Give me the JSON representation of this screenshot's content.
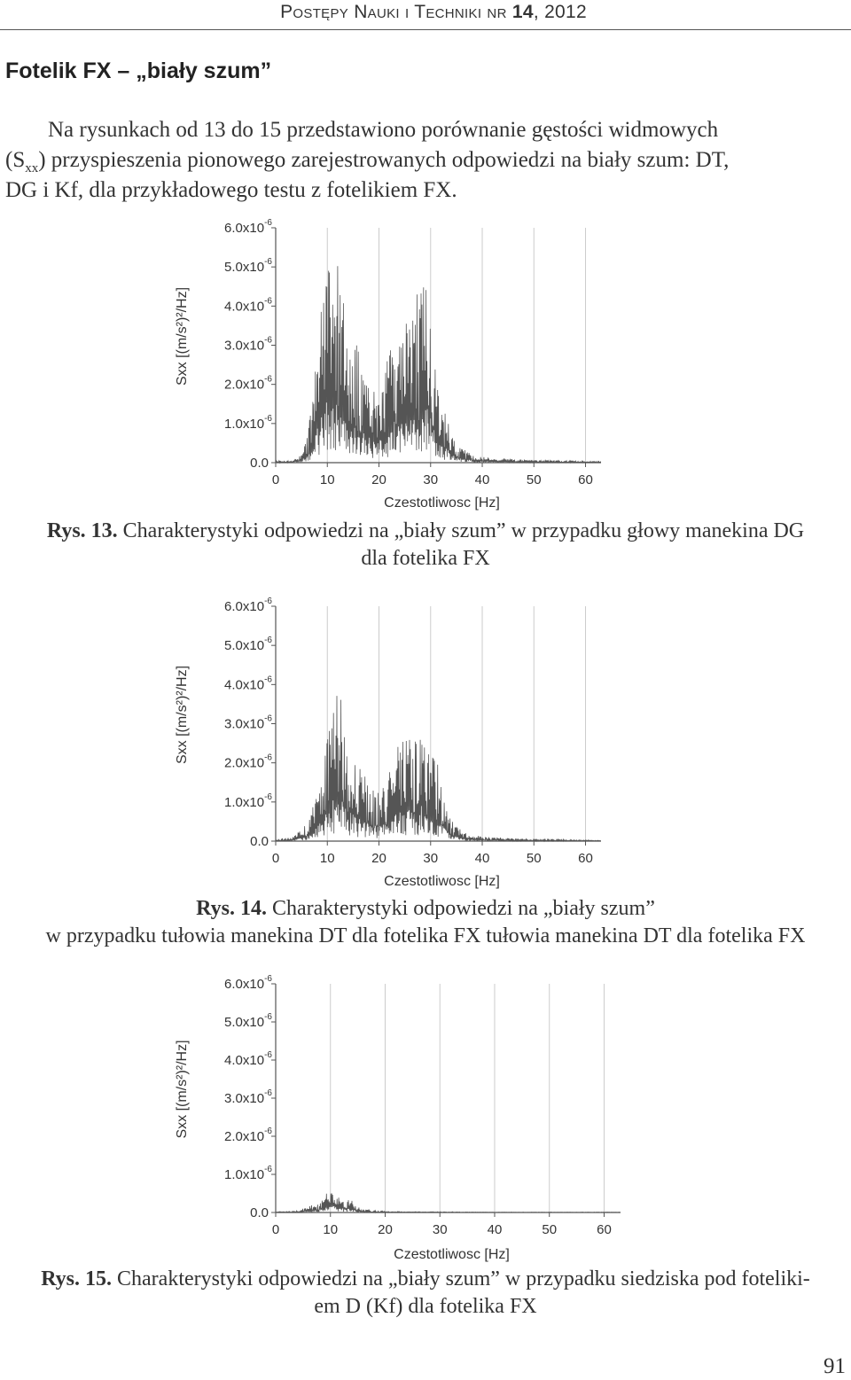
{
  "header": {
    "journal": "Postępy Nauki i Techniki nr",
    "issue": "14",
    "year": ", 2012"
  },
  "section_title": "Fotelik FX – „biały szum”",
  "intro": {
    "line1": "Na rysunkach od 13 do 15 przedstawiono porównanie gęstości widmowych",
    "line2_pre": "(S",
    "line2_sub": "xx",
    "line2_post": ") przyspieszenia pionowego zarejestrowanych odpowiedzi na biały szum: DT,",
    "line3": "DG i Kf, dla przykładowego testu z fotelikiem FX."
  },
  "axis_common": {
    "ylabel": "Sxx [(m/s²)²/Hz]",
    "xlabel": "Czestotliwosc [Hz]",
    "y_ticks": [
      "0.0",
      "1.0x10",
      "2.0x10",
      "3.0x10",
      "4.0x10",
      "5.0x10",
      "6.0x10"
    ],
    "y_tick_exp": "-6",
    "x_ticks": [
      "0",
      "10",
      "20",
      "30",
      "40",
      "50",
      "60"
    ]
  },
  "chart_data": [
    {
      "type": "area",
      "xlabel": "Czestotliwosc [Hz]",
      "ylabel": "Sxx [(m/s²)²/Hz]",
      "xlim": [
        0,
        63
      ],
      "ylim": [
        0,
        6e-06
      ],
      "x": [
        0,
        3,
        5,
        6,
        7,
        8,
        9,
        10,
        11,
        12,
        13,
        14,
        15,
        16,
        17,
        18,
        19,
        20,
        21,
        22,
        23,
        24,
        25,
        26,
        27,
        28,
        29,
        30,
        31,
        32,
        33,
        34,
        35,
        36,
        37,
        38,
        39,
        40,
        42,
        45,
        48,
        52,
        56,
        60,
        63
      ],
      "values": [
        5e-08,
        5e-08,
        2e-07,
        6e-07,
        1.5e-06,
        3e-06,
        4.5e-06,
        5.8e-06,
        4.8e-06,
        5.8e-06,
        4.6e-06,
        4.3e-06,
        3.3e-06,
        3e-06,
        2.6e-06,
        2.3e-06,
        2e-06,
        1.8e-06,
        2.4e-06,
        3e-06,
        3.6e-06,
        3.3e-06,
        3.7e-06,
        4.1e-06,
        4.4e-06,
        4.2e-06,
        5.2e-06,
        3.8e-06,
        2.2e-06,
        1.8e-06,
        1.2e-06,
        8e-07,
        5e-07,
        3.5e-07,
        3e-07,
        2e-07,
        1.5e-07,
        1.5e-07,
        1.2e-07,
        1e-07,
        8e-08,
        6e-08,
        5e-08,
        4e-08,
        3e-08
      ]
    },
    {
      "type": "area",
      "xlabel": "Czestotliwosc [Hz]",
      "ylabel": "Sxx [(m/s²)²/Hz]",
      "xlim": [
        0,
        63
      ],
      "ylim": [
        0,
        6e-06
      ],
      "x": [
        0,
        3,
        5,
        6,
        7,
        8,
        9,
        10,
        11,
        12,
        13,
        14,
        15,
        16,
        17,
        18,
        19,
        20,
        21,
        22,
        23,
        24,
        25,
        26,
        27,
        28,
        29,
        30,
        31,
        32,
        33,
        34,
        35,
        36,
        37,
        38,
        40,
        42,
        45,
        48,
        52,
        56,
        60,
        63
      ],
      "values": [
        5e-08,
        1e-07,
        3e-07,
        5e-07,
        8e-07,
        1.3e-06,
        1.8e-06,
        2.9e-06,
        3.8e-06,
        4e-06,
        3.5e-06,
        2.8e-06,
        2.3e-06,
        2e-06,
        1.8e-06,
        1.6e-06,
        1.3e-06,
        1.4e-06,
        1.4e-06,
        1.8e-06,
        2.3e-06,
        2.5e-06,
        2.9e-06,
        3e-06,
        2.6e-06,
        3.2e-06,
        2.8e-06,
        2.5e-06,
        2.1e-06,
        1.7e-06,
        1e-06,
        6e-07,
        4e-07,
        3e-07,
        2e-07,
        1.5e-07,
        1.2e-07,
        1e-07,
        8e-08,
        6e-08,
        5e-08,
        4e-08,
        3e-08,
        2e-08
      ]
    },
    {
      "type": "area",
      "xlabel": "Czestotliwosc [Hz]",
      "ylabel": "Sxx [(m/s²)²/Hz]",
      "xlim": [
        0,
        63
      ],
      "ylim": [
        0,
        6e-06
      ],
      "x": [
        0,
        3,
        4,
        5,
        6,
        7,
        8,
        9,
        10,
        11,
        12,
        13,
        14,
        15,
        16,
        18,
        20,
        25,
        30,
        40,
        50,
        63
      ],
      "values": [
        2e-08,
        3e-08,
        5e-08,
        1e-07,
        1.5e-07,
        2.2e-07,
        3e-07,
        4.5e-07,
        6.5e-07,
        5e-07,
        3.5e-07,
        4e-07,
        3e-07,
        1.5e-07,
        8e-08,
        5e-08,
        3e-08,
        2e-08,
        2e-08,
        1e-08,
        1e-08,
        1e-08
      ]
    }
  ],
  "captions": [
    {
      "label": "Rys. 13.",
      "line1": " Charakterystyki odpowiedzi na „biały szum” w przypadku głowy manekina DG",
      "line2": "dla fotelika FX"
    },
    {
      "label": "Rys. 14.",
      "line1": " Charakterystyki odpowiedzi na „biały szum”",
      "line2": "w przypadku tułowia manekina DT dla fotelika FX tułowia manekina DT dla fotelika FX"
    },
    {
      "label": "Rys. 15.",
      "line1": " Charakterystyki odpowiedzi na „biały szum” w przypadku siedziska pod foteliki-",
      "line2": "em D (Kf) dla fotelika FX"
    }
  ],
  "page_number": "91",
  "colors": {
    "trace": "#555555",
    "axis": "#555555",
    "grid": "#cccccc"
  }
}
